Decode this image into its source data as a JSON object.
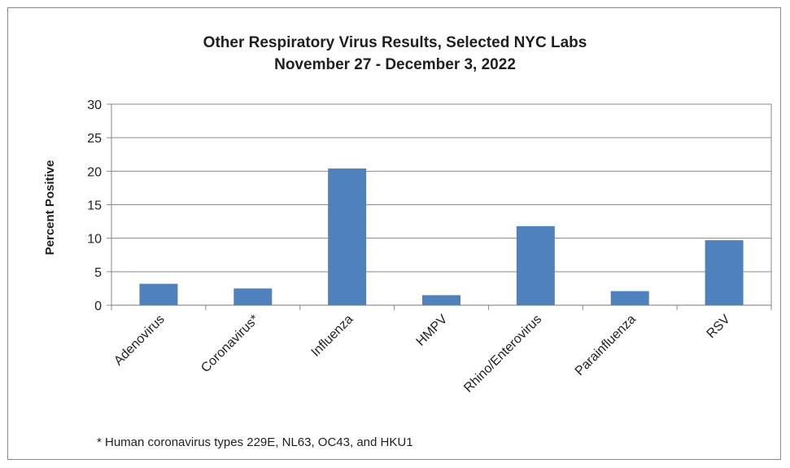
{
  "chart_data": {
    "type": "bar",
    "title": [
      "Other Respiratory Virus Results, Selected NYC Labs",
      "November 27 - December 3, 2022"
    ],
    "ylabel": "Percent Positive",
    "categories": [
      "Adenovirus",
      "Coronavirus*",
      "Influenza",
      "HMPV",
      "Rhino/Enterovirus",
      "Parainfluenza",
      "RSV"
    ],
    "values": [
      3.2,
      2.5,
      20.4,
      1.5,
      11.8,
      2.1,
      9.7
    ],
    "ylim": [
      0,
      30
    ],
    "yticks": [
      0,
      5,
      10,
      15,
      20,
      25,
      30
    ],
    "bar_color": "#4f81bd",
    "grid": true,
    "legend": "none",
    "footnote": "* Human coronavirus types 229E, NL63, OC43, and HKU1"
  }
}
